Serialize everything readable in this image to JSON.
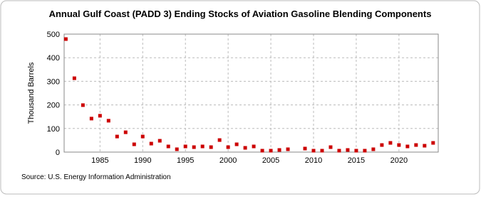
{
  "chart_data": {
    "type": "scatter",
    "title": "Annual Gulf Coast (PADD 3) Ending Stocks of Aviation Gasoline Blending Components",
    "y_label": "Thousand Barrels",
    "source": "Source: U.S. Energy Information Administration",
    "x": [
      1981,
      1982,
      1983,
      1984,
      1985,
      1986,
      1987,
      1988,
      1989,
      1990,
      1991,
      1992,
      1993,
      1994,
      1995,
      1996,
      1997,
      1998,
      1999,
      2000,
      2001,
      2002,
      2003,
      2004,
      2005,
      2006,
      2007,
      2008,
      2009,
      2010,
      2011,
      2012,
      2013,
      2014,
      2015,
      2016,
      2017,
      2018,
      2019,
      2020,
      2021,
      2022,
      2023,
      2024
    ],
    "series": [
      {
        "name": "Ending Stocks",
        "color": "#cc0000",
        "values": [
          479,
          313,
          199,
          142,
          154,
          133,
          66,
          84,
          33,
          66,
          36,
          48,
          24,
          12,
          24,
          21,
          24,
          21,
          51,
          21,
          33,
          18,
          24,
          6,
          6,
          9,
          12,
          null,
          15,
          6,
          6,
          21,
          6,
          9,
          6,
          6,
          12,
          30,
          39,
          30,
          24,
          30,
          27,
          39
        ]
      }
    ],
    "xlim": [
      1980.8,
      2024.6
    ],
    "xticks": [
      1985,
      1990,
      1995,
      2000,
      2005,
      2010,
      2015,
      2020
    ],
    "ylim": [
      0,
      500
    ],
    "yticks": [
      0,
      100,
      200,
      300,
      400,
      500
    ],
    "grid": true
  }
}
